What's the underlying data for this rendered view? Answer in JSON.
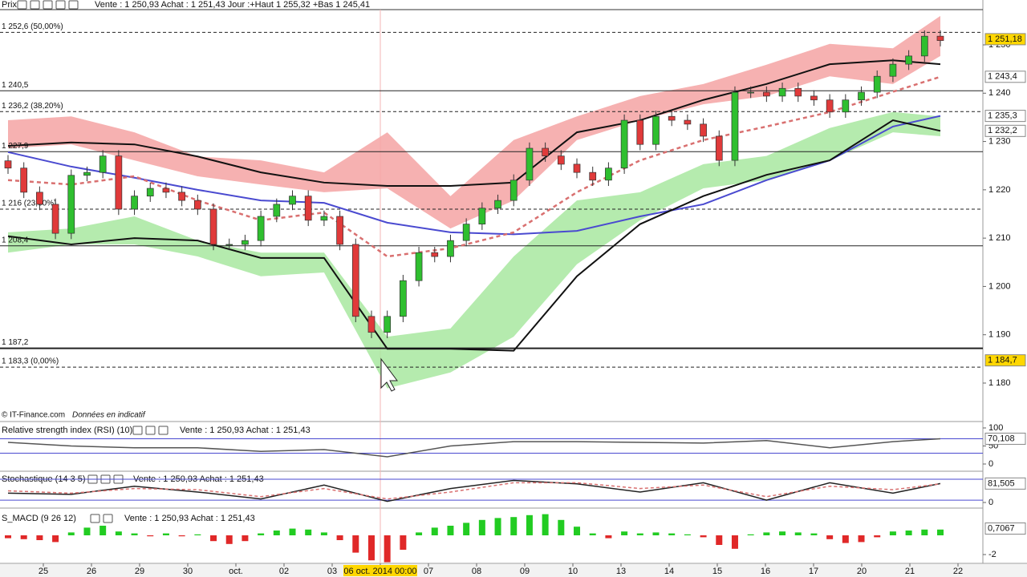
{
  "chart_data": [
    {
      "type": "candlestick",
      "title": "Prix",
      "subtitle": "Vente : 1 250,93 Achat : 1 251,43 Jour :+Haut 1 255,32 +Bas 1 245,41",
      "open": [
        1226,
        1224.5,
        1219.5,
        1217,
        1211,
        1223,
        1223.6,
        1227,
        1216,
        1218.7,
        1220.3,
        1219.5,
        1217.8,
        1216,
        1208.7,
        1208.7,
        1209.5,
        1214.5,
        1217,
        1218.7,
        1213.7,
        1214.5,
        1208.7,
        1193.8,
        1190.5,
        1193.8,
        1201.2,
        1207,
        1206.2,
        1209.5,
        1212.9,
        1216.2,
        1217.8,
        1222,
        1228.6,
        1227,
        1225.3,
        1223.6,
        1222,
        1224.5,
        1234.4,
        1229.4,
        1235.2,
        1234.4,
        1233.6,
        1231.1,
        1226.1,
        1240.2,
        1240.2,
        1239.4,
        1241,
        1239.4,
        1238.6,
        1236.1,
        1238.6,
        1240.2,
        1243.5,
        1246,
        1247.7,
        1251.8
      ],
      "high": [
        1227.2,
        1225.7,
        1220.7,
        1218.2,
        1224.2,
        1224.8,
        1228.2,
        1228.2,
        1219.9,
        1221.5,
        1221.5,
        1220.7,
        1219,
        1217.2,
        1209.9,
        1210.7,
        1215.7,
        1218.2,
        1219.9,
        1219.9,
        1215.7,
        1215.7,
        1209.9,
        1195,
        1195,
        1202.4,
        1208.2,
        1208.2,
        1210.7,
        1214.1,
        1217.4,
        1219,
        1223.2,
        1229.8,
        1229.8,
        1228.2,
        1226.5,
        1224.8,
        1225.7,
        1235.6,
        1235.6,
        1236.4,
        1236.4,
        1235.6,
        1234.8,
        1232.3,
        1241.4,
        1241.4,
        1241.4,
        1242.2,
        1242.2,
        1240.6,
        1239.8,
        1239.8,
        1241.4,
        1244.7,
        1247.2,
        1248.9,
        1253,
        1253
      ],
      "low": [
        1223.3,
        1218.3,
        1215.8,
        1209.8,
        1209.8,
        1221.8,
        1222.4,
        1214.8,
        1214.8,
        1217.5,
        1218.3,
        1216.6,
        1214.8,
        1207.5,
        1207.5,
        1207.5,
        1208.3,
        1213.3,
        1215.8,
        1212.5,
        1212.5,
        1207.5,
        1192.6,
        1189.3,
        1189.3,
        1192.6,
        1200,
        1205,
        1205,
        1208.3,
        1211.7,
        1215,
        1216.6,
        1220.8,
        1225.8,
        1224.1,
        1222.4,
        1220.8,
        1220.8,
        1223.3,
        1228.2,
        1228.2,
        1233.2,
        1232.4,
        1229.9,
        1224.9,
        1224.9,
        1239,
        1238.2,
        1238.2,
        1238.2,
        1237.4,
        1234.9,
        1234.9,
        1237.4,
        1239,
        1242.3,
        1244.8,
        1246.5,
        1249.7
      ],
      "close": [
        1224.5,
        1219.5,
        1217,
        1211,
        1223,
        1223.6,
        1227,
        1216,
        1218.7,
        1220.3,
        1219.5,
        1217.8,
        1216,
        1208.7,
        1208.7,
        1209.5,
        1214.5,
        1217,
        1218.7,
        1213.7,
        1214.5,
        1208.7,
        1193.8,
        1190.5,
        1193.8,
        1201.2,
        1207,
        1206.2,
        1209.5,
        1212.9,
        1216.2,
        1217.8,
        1222,
        1228.6,
        1227,
        1225.3,
        1223.6,
        1222,
        1224.5,
        1234.4,
        1229.4,
        1235.2,
        1234.4,
        1233.6,
        1231.1,
        1226.1,
        1240.2,
        1240.2,
        1239.4,
        1241,
        1239.4,
        1238.6,
        1236.1,
        1238.6,
        1240.2,
        1243.5,
        1246,
        1247.7,
        1251.8,
        1250.9
      ],
      "up_color": "#2fbf2f",
      "down_color": "#e03a3a",
      "ylim": [
        1172.7,
        1257.3
      ],
      "yticks": [
        {
          "value": 1180,
          "label": "1 180"
        },
        {
          "value": 1190,
          "label": "1 190"
        },
        {
          "value": 1200,
          "label": "1 200"
        },
        {
          "value": 1210,
          "label": "1 210"
        },
        {
          "value": 1220,
          "label": "1 220"
        },
        {
          "value": 1230,
          "label": "1 230"
        },
        {
          "value": 1240,
          "label": "1 240"
        },
        {
          "value": 1250,
          "label": "1 250"
        }
      ],
      "levels": [
        {
          "value": 1252.6,
          "label": "1 252,6 (50,00%)",
          "dash": true,
          "width": 1
        },
        {
          "value": 1240.5,
          "label": "1 240,5",
          "dash": false,
          "width": 1
        },
        {
          "value": 1236.2,
          "label": "1 236,2 (38,20%)",
          "dash": true,
          "width": 1
        },
        {
          "value": 1227.9,
          "label": "1 227,9",
          "dash": false,
          "width": 1
        },
        {
          "value": 1216,
          "label": "1 216 (23,60%)",
          "dash": true,
          "width": 1
        },
        {
          "value": 1208.4,
          "label": "1 208,4",
          "dash": false,
          "width": 1
        },
        {
          "value": 1187.2,
          "label": "1 187,2",
          "dash": false,
          "width": 2
        },
        {
          "value": 1183.3,
          "label": "1 183,3 (0,00%)",
          "dash": true,
          "width": 1
        }
      ],
      "overlay_x": [
        0,
        4,
        8,
        12,
        16,
        20,
        24,
        28,
        32,
        36,
        40,
        44,
        48,
        52,
        56,
        59
      ],
      "bands": [
        {
          "color": "#f4a3a3",
          "upper": [
            1234.4,
            1235.2,
            1231.9,
            1226.9,
            1226.1,
            1223.6,
            1231.9,
            1218.7,
            1230.3,
            1235.2,
            1239.4,
            1241.9,
            1245.9,
            1250.2,
            1249.3,
            1256
          ],
          "lower": [
            1228.6,
            1229.4,
            1226.1,
            1222.8,
            1221.1,
            1219.5,
            1220.3,
            1212,
            1217.8,
            1230.3,
            1234.4,
            1237.7,
            1239.4,
            1243.5,
            1241.9,
            1247.7
          ]
        },
        {
          "color": "#a8e8a0",
          "upper": [
            1211.2,
            1212,
            1214.5,
            1209.5,
            1207,
            1207,
            1189.6,
            1191.3,
            1206.2,
            1217.8,
            1219.5,
            1225.3,
            1227,
            1232.8,
            1236.1,
            1235.2
          ],
          "lower": [
            1207,
            1208.7,
            1208.7,
            1206.2,
            1202.1,
            1202.9,
            1178.9,
            1182.2,
            1189.6,
            1204.6,
            1213.7,
            1220.3,
            1222,
            1226.1,
            1231.9,
            1231.1
          ]
        }
      ],
      "lines": [
        {
          "color": "#4a4ad0",
          "dash": false,
          "values": [
            1227.8,
            1224.8,
            1222.5,
            1220,
            1217.8,
            1217.3,
            1213.2,
            1211.2,
            1210.8,
            1211.5,
            1214.5,
            1217,
            1222,
            1226.1,
            1233.1,
            1235.3
          ]
        },
        {
          "color": "#d97070",
          "dash": true,
          "values": [
            1222,
            1221.1,
            1222.8,
            1217.8,
            1213.7,
            1215.3,
            1206.2,
            1207.9,
            1211.2,
            1219.5,
            1226.1,
            1230.3,
            1233.1,
            1236.1,
            1240.3,
            1243.4
          ]
        },
        {
          "color": "#111111",
          "dash": false,
          "values": [
            1229.1,
            1229.8,
            1229.4,
            1226.9,
            1223.6,
            1221.5,
            1220.8,
            1220.8,
            1221.5,
            1231.9,
            1234.4,
            1238.6,
            1241.9,
            1246,
            1246.8,
            1246
          ]
        },
        {
          "color": "#111111",
          "dash": false,
          "values": [
            1210.4,
            1208.7,
            1210,
            1209.5,
            1205.9,
            1205.9,
            1187.1,
            1187.1,
            1186.7,
            1202.1,
            1212.9,
            1218.7,
            1223.1,
            1226.1,
            1234.4,
            1232.2
          ]
        }
      ],
      "last_values": [
        {
          "value": 1251.18,
          "label": "1 251,18",
          "color": "#000000",
          "box": "#ffd700"
        },
        {
          "value": 1243.4,
          "label": "1 243,4",
          "color": "#d05050",
          "box": "#ffffff"
        },
        {
          "value": 1235.3,
          "label": "1 235,3",
          "color": "#3a3ac0",
          "box": "#ffffff"
        },
        {
          "value": 1232.2,
          "label": "1 232,2",
          "color": "#000000",
          "box": "#ffffff"
        },
        {
          "value": 1184.7,
          "label": "1 184,7",
          "color": "#000000",
          "box": "#ffd700"
        }
      ],
      "categories": [
        "25",
        "26",
        "29",
        "30",
        "oct.",
        "02",
        "03",
        "06 oct. 2014 00:00",
        "07",
        "08",
        "09",
        "10",
        "13",
        "14",
        "15",
        "16",
        "17",
        "20",
        "21",
        "22"
      ],
      "crosshair_index": 7,
      "footer": "© IT-Finance.com",
      "footer_note": "Données en indicatif"
    },
    {
      "type": "line",
      "title": "Relative strength index (RSI) (10)",
      "subtitle": "Vente : 1 250,93 Achat : 1 251,43",
      "x": [
        0,
        4,
        8,
        12,
        16,
        20,
        24,
        28,
        32,
        36,
        40,
        44,
        48,
        52,
        56,
        59
      ],
      "series": [
        {
          "color": "#555555",
          "dash": false,
          "values": [
            60,
            50,
            45,
            45,
            35,
            40,
            20,
            50,
            62,
            62,
            60,
            58,
            65,
            45,
            62,
            70.108
          ]
        }
      ],
      "ylim": [
        0,
        100
      ],
      "yticks": [
        0,
        50,
        100
      ],
      "levels": [
        70,
        30
      ],
      "level_color": "#4a4ad0",
      "last_value": {
        "value": 70.108,
        "label": "70,108"
      }
    },
    {
      "type": "line",
      "title": "Stochastique (14 3 5)",
      "subtitle": "Vente : 1 250,93 Achat : 1 251,43",
      "x": [
        0,
        4,
        8,
        12,
        16,
        20,
        24,
        28,
        32,
        36,
        40,
        44,
        48,
        52,
        56,
        59
      ],
      "series": [
        {
          "color": "#222222",
          "dash": false,
          "values": [
            40,
            35,
            70,
            45,
            15,
            75,
            5,
            60,
            95,
            80,
            45,
            85,
            10,
            85,
            40,
            81.505
          ]
        },
        {
          "color": "#d97070",
          "dash": true,
          "values": [
            50,
            40,
            60,
            55,
            25,
            60,
            15,
            45,
            85,
            85,
            60,
            75,
            25,
            70,
            55,
            80
          ]
        }
      ],
      "ylim": [
        0,
        100
      ],
      "yticks": [
        0
      ],
      "levels": [
        100,
        10
      ],
      "level_color": "#4a4ad0",
      "last_value": {
        "value": 81.505,
        "label": "81,505"
      }
    },
    {
      "type": "bar",
      "title": "S_MACD (9 26 12)",
      "subtitle": "Vente : 1 250,93 Achat : 1 251,43",
      "values": [
        -0.3,
        -0.4,
        -0.5,
        -0.7,
        0.3,
        0.8,
        1.0,
        0.4,
        0.2,
        -0.1,
        0.2,
        -0.1,
        0.1,
        -0.6,
        -0.9,
        -0.6,
        0.2,
        0.5,
        0.7,
        0.6,
        0.3,
        -0.5,
        -1.8,
        -2.6,
        -2.8,
        -1.5,
        0.3,
        0.8,
        1.0,
        1.3,
        1.6,
        1.8,
        1.9,
        2.1,
        2.2,
        1.6,
        0.9,
        0.2,
        -0.3,
        0.4,
        0.2,
        0.3,
        0.2,
        0.1,
        -0.2,
        -1.0,
        -1.4,
        0.1,
        0.3,
        0.4,
        0.3,
        0.2,
        -0.4,
        -0.8,
        -0.7,
        -0.2,
        0.4,
        0.5,
        0.6,
        0.6
      ],
      "up_color": "#22cc22",
      "down_color": "#e02828",
      "ylim": [
        -2.75,
        2.5
      ],
      "yticks": [
        -2
      ],
      "last_value": {
        "value": 0.7067,
        "label": "0,7067"
      }
    }
  ]
}
